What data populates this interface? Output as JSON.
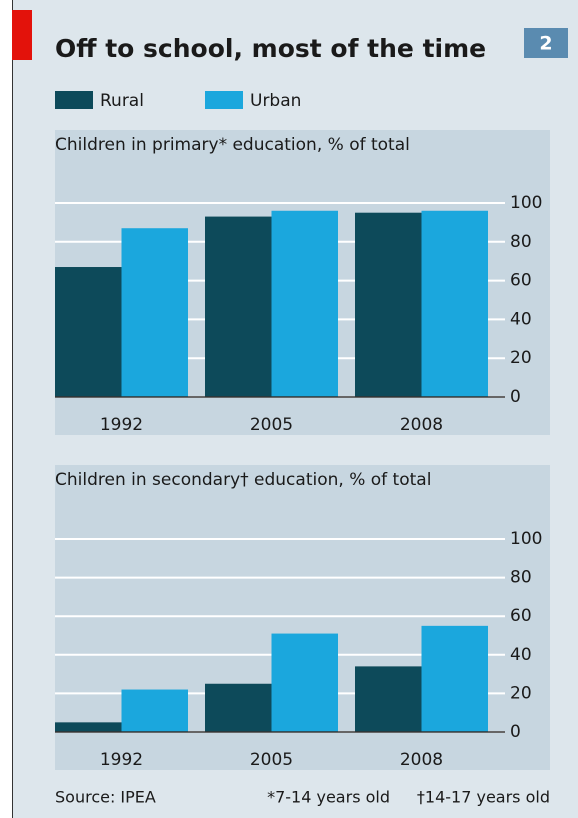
{
  "title": "Off to school, most of the time",
  "badge": "2",
  "source": "Source: IPEA",
  "notes": [
    "*7-14 years old",
    "†14-17 years old"
  ],
  "chart_data": [
    {
      "type": "bar",
      "title": "Children in primary* education, % of total",
      "categories": [
        "1992",
        "2005",
        "2008"
      ],
      "series": [
        {
          "name": "Rural",
          "color": "#0d4a5a",
          "values": [
            67,
            93,
            95
          ]
        },
        {
          "name": "Urban",
          "color": "#1ba7dd",
          "values": [
            87,
            96,
            96
          ]
        }
      ],
      "ylim": [
        0,
        100
      ],
      "yticks": [
        0,
        20,
        40,
        60,
        80,
        100
      ],
      "grid": true
    },
    {
      "type": "bar",
      "title": "Children in secondary† education, % of total",
      "categories": [
        "1992",
        "2005",
        "2008"
      ],
      "series": [
        {
          "name": "Rural",
          "color": "#0d4a5a",
          "values": [
            5,
            25,
            34
          ]
        },
        {
          "name": "Urban",
          "color": "#1ba7dd",
          "values": [
            22,
            51,
            55
          ]
        }
      ],
      "ylim": [
        0,
        100
      ],
      "yticks": [
        0,
        20,
        40,
        60,
        80,
        100
      ],
      "grid": true
    }
  ]
}
